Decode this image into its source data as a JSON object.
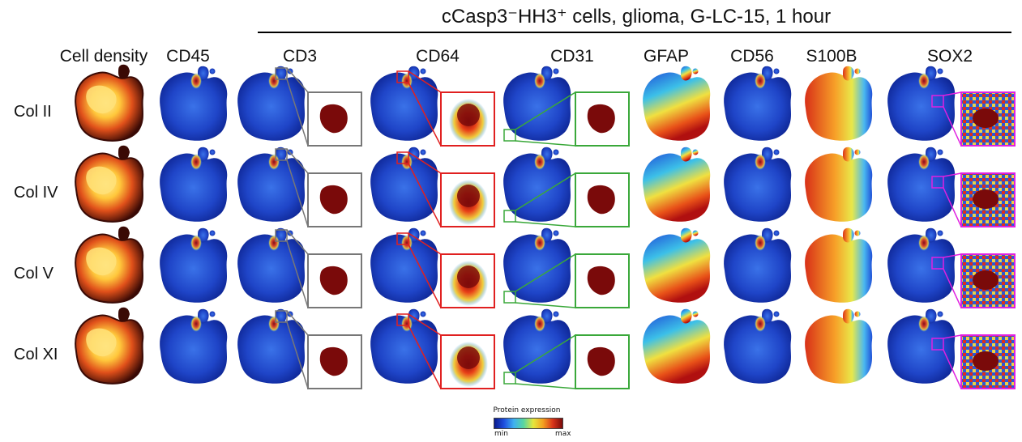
{
  "figure": {
    "title": "cCasp3⁻HH3⁺ cells, glioma, G-LC-15, 1 hour",
    "columns": [
      "Cell density",
      "CD45",
      "CD3",
      "CD64",
      "CD31",
      "GFAP",
      "CD56",
      "S100B",
      "SOX2"
    ],
    "rows": [
      "Col II",
      "Col IV",
      "Col V",
      "Col XI"
    ],
    "legend": {
      "title": "Protein expression",
      "min_label": "min",
      "max_label": "max"
    },
    "colors": {
      "density_dark": "#3a0a05",
      "density_bright": "#ffd24a",
      "expression_low": "#0a1a8c",
      "expression_high": "#7a0a0a",
      "zoom_cd3": "#777777",
      "zoom_cd64": "#e02020",
      "zoom_cd31": "#3aa83a",
      "zoom_sox2": "#e020e0"
    },
    "map_style": {
      "CD45": "low",
      "CD3": "low",
      "CD64": "low",
      "CD31": "low",
      "GFAP": "gradient",
      "CD56": "low",
      "S100B": "hot",
      "SOX2": "low"
    }
  }
}
